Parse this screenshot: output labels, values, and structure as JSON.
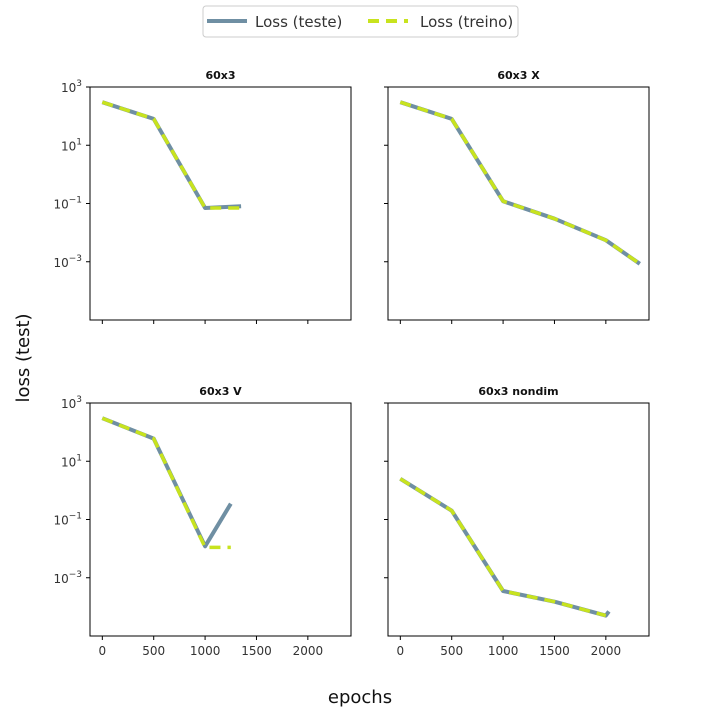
{
  "figure": {
    "xlabel": "epochs",
    "ylabel": "loss (test)"
  },
  "legend": {
    "placement": "top-center",
    "entries": [
      {
        "label": "Loss (teste)",
        "color": "#6f8fa3",
        "style": "solid"
      },
      {
        "label": "Loss (treino)",
        "color": "#c8e31e",
        "style": "dashed"
      }
    ]
  },
  "chart_data": [
    {
      "type": "line",
      "title": "60x3",
      "xlim": [
        -120,
        2420
      ],
      "ylim": [
        1e-05,
        1000
      ],
      "yscale": "log",
      "xticks": [
        0,
        500,
        1000,
        1500,
        2000
      ],
      "show_xticklabels": false,
      "yticks": [
        {
          "label": "10^3",
          "value": 1000
        },
        {
          "label": "10^1",
          "value": 10
        },
        {
          "label": "10^-1",
          "value": 0.1
        },
        {
          "label": "10^-3",
          "value": 0.001
        }
      ],
      "show_yticklabels": true,
      "series": [
        {
          "name": "Loss (teste)",
          "x": [
            0,
            500,
            1000,
            1350
          ],
          "y": [
            300,
            80,
            0.07,
            0.08
          ]
        },
        {
          "name": "Loss (treino)",
          "x": [
            0,
            500,
            1000,
            1350
          ],
          "y": [
            300,
            80,
            0.07,
            0.07
          ]
        }
      ]
    },
    {
      "type": "line",
      "title": "60x3 X",
      "xlim": [
        -120,
        2420
      ],
      "ylim": [
        1e-05,
        1000
      ],
      "yscale": "log",
      "xticks": [
        0,
        500,
        1000,
        1500,
        2000
      ],
      "show_xticklabels": false,
      "yticks": [
        {
          "label": "10^3",
          "value": 1000
        },
        {
          "label": "10^1",
          "value": 10
        },
        {
          "label": "10^-1",
          "value": 0.1
        },
        {
          "label": "10^-3",
          "value": 0.001
        }
      ],
      "show_yticklabels": false,
      "series": [
        {
          "name": "Loss (teste)",
          "x": [
            0,
            500,
            1000,
            1500,
            2000,
            2330
          ],
          "y": [
            300,
            80,
            0.12,
            0.03,
            0.0055,
            0.00085
          ]
        },
        {
          "name": "Loss (treino)",
          "x": [
            0,
            500,
            1000,
            1500,
            2000,
            2330
          ],
          "y": [
            300,
            80,
            0.12,
            0.03,
            0.0055,
            0.00085
          ]
        }
      ]
    },
    {
      "type": "line",
      "title": "60x3 V",
      "xlim": [
        -120,
        2420
      ],
      "ylim": [
        1e-05,
        1000
      ],
      "yscale": "log",
      "xticks": [
        0,
        500,
        1000,
        1500,
        2000
      ],
      "show_xticklabels": true,
      "yticks": [
        {
          "label": "10^3",
          "value": 1000
        },
        {
          "label": "10^1",
          "value": 10
        },
        {
          "label": "10^-1",
          "value": 0.1
        },
        {
          "label": "10^-3",
          "value": 0.001
        }
      ],
      "show_yticklabels": true,
      "series": [
        {
          "name": "Loss (teste)",
          "x": [
            0,
            500,
            1000,
            1250
          ],
          "y": [
            300,
            60,
            0.012,
            0.35
          ]
        },
        {
          "name": "Loss (treino)",
          "x": [
            0,
            500,
            1000,
            1250
          ],
          "y": [
            300,
            60,
            0.011,
            0.011
          ]
        }
      ]
    },
    {
      "type": "line",
      "title": "60x3 nondim",
      "xlim": [
        -120,
        2420
      ],
      "ylim": [
        1e-05,
        1000
      ],
      "yscale": "log",
      "xticks": [
        0,
        500,
        1000,
        1500,
        2000
      ],
      "show_xticklabels": true,
      "yticks": [
        {
          "label": "10^3",
          "value": 1000
        },
        {
          "label": "10^1",
          "value": 10
        },
        {
          "label": "10^-1",
          "value": 0.1
        },
        {
          "label": "10^-3",
          "value": 0.001
        }
      ],
      "show_yticklabels": false,
      "series": [
        {
          "name": "Loss (teste)",
          "x": [
            0,
            500,
            1000,
            1500,
            2000,
            2030
          ],
          "y": [
            2.5,
            0.2,
            0.00035,
            0.00015,
            5e-05,
            7e-05
          ]
        },
        {
          "name": "Loss (treino)",
          "x": [
            0,
            500,
            1000,
            1500,
            2000
          ],
          "y": [
            2.5,
            0.2,
            0.00035,
            0.00015,
            5e-05
          ]
        }
      ]
    }
  ]
}
